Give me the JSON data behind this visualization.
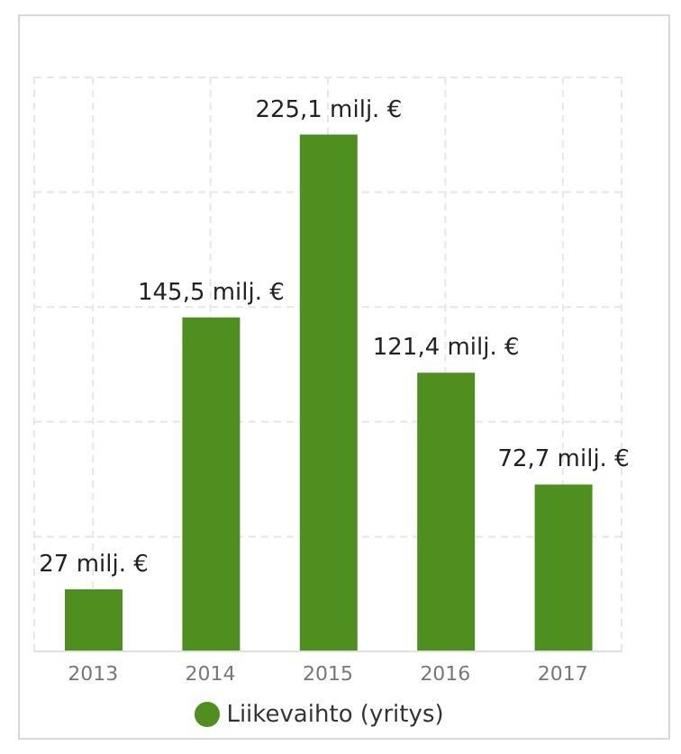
{
  "chart_data": {
    "type": "bar",
    "categories": [
      "2013",
      "2014",
      "2015",
      "2016",
      "2017"
    ],
    "series": [
      {
        "name": "Liikevaihto (yritys)",
        "color": "#4f8f1f",
        "values": [
          27,
          145.5,
          225.1,
          121.4,
          72.7
        ],
        "value_labels": [
          "27 milj. €",
          "145,5 milj. €",
          "225,1 milj. €",
          "121,4 milj. €",
          "72,7 milj. €"
        ]
      }
    ],
    "ylim": [
      0,
      250
    ],
    "yticks": [
      {
        "value": 0,
        "label": null
      },
      {
        "value": 50,
        "label": null
      },
      {
        "value": 100,
        "label": null
      },
      {
        "value": 150,
        "label": null
      },
      {
        "value": 200,
        "label": null
      },
      {
        "value": 250,
        "label": null
      }
    ],
    "tick_labels": "x",
    "grid": true,
    "legend": "bottom"
  }
}
